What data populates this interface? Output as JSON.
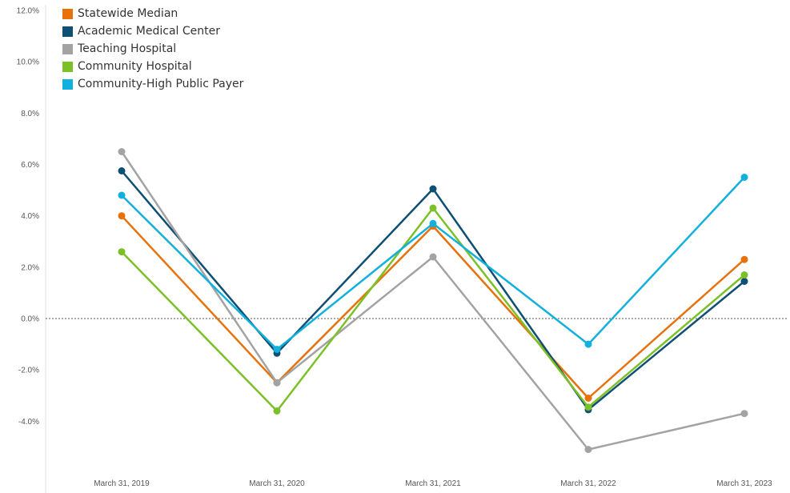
{
  "chart_data": {
    "type": "line",
    "x": [
      "March 31, 2019",
      "March 31, 2020",
      "March 31, 2021",
      "March 31, 2022",
      "March 31, 2023"
    ],
    "ylim": [
      -6.5,
      12.0
    ],
    "yticks": [
      {
        "value": 12,
        "label": "12.0%"
      },
      {
        "value": 10,
        "label": "10.0%"
      },
      {
        "value": 8,
        "label": "8.0%"
      },
      {
        "value": 6,
        "label": "6.0%"
      },
      {
        "value": 4,
        "label": "4.0%"
      },
      {
        "value": 2,
        "label": "2.0%"
      },
      {
        "value": 0,
        "label": "0.0%"
      },
      {
        "value": -2,
        "label": "-2.0%"
      },
      {
        "value": -4,
        "label": "-4.0%"
      }
    ],
    "zero_line": true,
    "grid": false,
    "legend_position": "top-left",
    "series": [
      {
        "name": "Statewide Median",
        "color": "#E8710A",
        "values": [
          4.0,
          -2.5,
          3.6,
          -3.1,
          2.3
        ]
      },
      {
        "name": "Academic Medical Center",
        "color": "#0E4F73",
        "values": [
          5.75,
          -1.35,
          5.05,
          -3.55,
          1.45
        ]
      },
      {
        "name": "Teaching Hospital",
        "color": "#A3A3A3",
        "values": [
          6.5,
          -2.5,
          2.4,
          -5.1,
          -3.7
        ]
      },
      {
        "name": "Community Hospital",
        "color": "#7CC028",
        "values": [
          2.6,
          -3.6,
          4.3,
          -3.45,
          1.7
        ]
      },
      {
        "name": "Community-High Public Payer",
        "color": "#12B0DC",
        "values": [
          4.8,
          -1.2,
          3.7,
          -1.0,
          5.5
        ]
      }
    ]
  }
}
